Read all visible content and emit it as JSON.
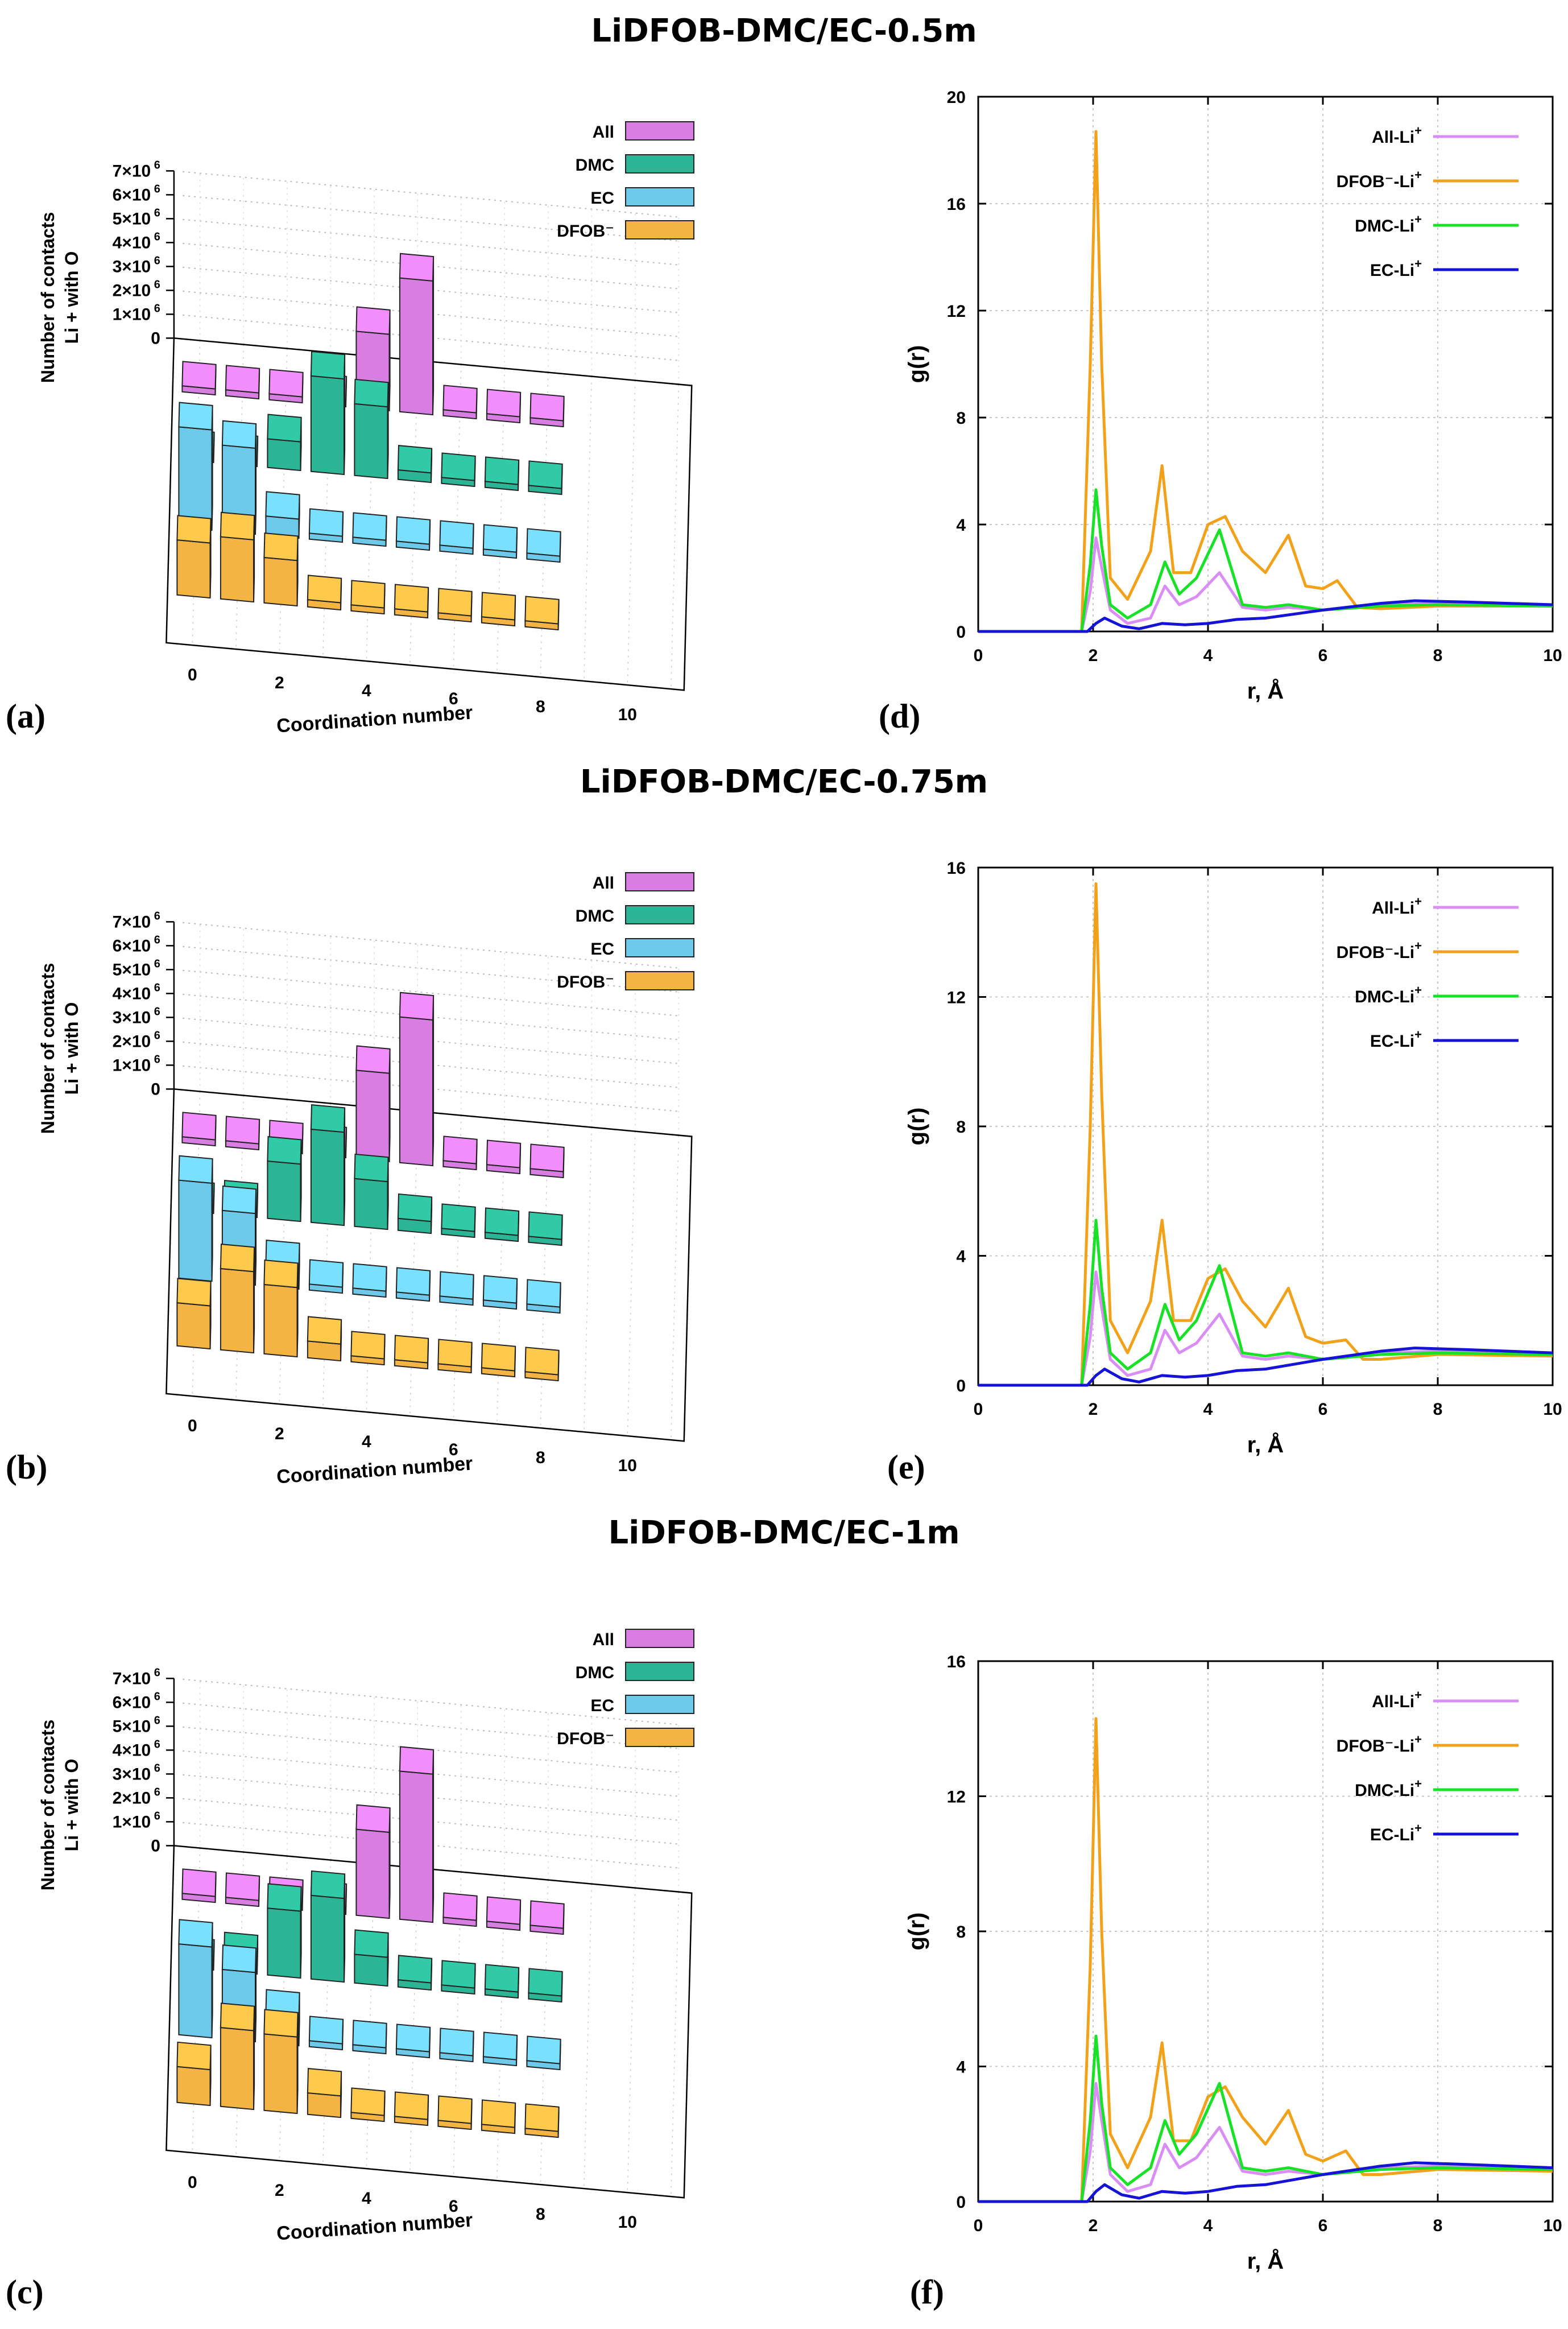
{
  "titles": [
    "LiDFOB-DMC/EC-0.5m",
    "LiDFOB-DMC/EC-0.75m",
    "LiDFOB-DMC/EC-1m"
  ],
  "labels": {
    "a": "(a)",
    "b": "(b)",
    "c": "(c)",
    "d": "(d)",
    "e": "(e)",
    "f": "(f)"
  },
  "chart_data": [
    {
      "id": "a",
      "type": "bar3d",
      "title": "LiDFOB-DMC/EC-0.5m",
      "xlabel": "Coordination number",
      "ylabel": [
        "Number of contacts",
        "Li + with O"
      ],
      "zticks": [
        "0",
        "1×10 6",
        "2×10 6",
        "3×10 6",
        "4×10 6",
        "5×10 6",
        "6×10 6",
        "7×10 6"
      ],
      "xticks": [
        "0",
        "2",
        "4",
        "6",
        "8",
        "10"
      ],
      "legend": [
        "All",
        "DMC",
        "EC",
        "DFOB⁻"
      ],
      "colors": [
        "#d87ee3",
        "#2bb594",
        "#6cc9ea",
        "#f4b443"
      ],
      "series": [
        {
          "name": "All",
          "values": [
            0,
            0,
            0,
            0,
            3.2,
            5.6,
            0,
            0,
            0
          ]
        },
        {
          "name": "DMC",
          "values": [
            0,
            0,
            1.2,
            4.0,
            3.0,
            0.4,
            0,
            0,
            0
          ]
        },
        {
          "name": "EC",
          "values": [
            4.2,
            3.6,
            0.8,
            0,
            0,
            0,
            0,
            0,
            0
          ]
        },
        {
          "name": "DFOB⁻",
          "values": [
            2.3,
            2.6,
            1.9,
            0.3,
            0,
            0,
            0,
            0,
            0
          ]
        }
      ]
    },
    {
      "id": "b",
      "type": "bar3d",
      "title": "LiDFOB-DMC/EC-0.75m",
      "xlabel": "Coordination number",
      "ylabel": [
        "Number of contacts",
        "Li + with O"
      ],
      "zticks": [
        "0",
        "1×10 6",
        "2×10 6",
        "3×10 6",
        "4×10 6",
        "5×10 6",
        "6×10 6",
        "7×10 6"
      ],
      "xticks": [
        "0",
        "2",
        "4",
        "6",
        "8",
        "10"
      ],
      "legend": [
        "All",
        "DMC",
        "EC",
        "DFOB⁻"
      ],
      "colors": [
        "#d87ee3",
        "#2bb594",
        "#6cc9ea",
        "#f4b443"
      ],
      "series": [
        {
          "name": "All",
          "values": [
            0,
            0,
            0,
            0,
            3.7,
            6.1,
            0,
            0,
            0
          ]
        },
        {
          "name": "DMC",
          "values": [
            0,
            0.4,
            2.4,
            3.9,
            2.0,
            0.5,
            0,
            0,
            0
          ]
        },
        {
          "name": "EC",
          "values": [
            4.1,
            3.0,
            0.9,
            0,
            0,
            0,
            0,
            0,
            0
          ]
        },
        {
          "name": "DFOB⁻",
          "values": [
            1.8,
            3.4,
            2.9,
            0.7,
            0,
            0,
            0,
            0,
            0
          ]
        }
      ]
    },
    {
      "id": "c",
      "type": "bar3d",
      "title": "LiDFOB-DMC/EC-1m",
      "xlabel": "Coordination number",
      "ylabel": [
        "Number of contacts",
        "Li + with O"
      ],
      "zticks": [
        "0",
        "1×10 6",
        "2×10 6",
        "3×10 6",
        "4×10 6",
        "5×10 6",
        "6×10 6",
        "7×10 6"
      ],
      "xticks": [
        "0",
        "2",
        "4",
        "6",
        "8",
        "10"
      ],
      "legend": [
        "All",
        "DMC",
        "EC",
        "DFOB⁻"
      ],
      "colors": [
        "#d87ee3",
        "#2bb594",
        "#6cc9ea",
        "#f4b443"
      ],
      "series": [
        {
          "name": "All",
          "values": [
            0,
            0,
            0,
            0,
            3.6,
            6.2,
            0,
            0,
            0
          ]
        },
        {
          "name": "DMC",
          "values": [
            0,
            0.6,
            2.8,
            3.5,
            1.2,
            0.3,
            0,
            0,
            0
          ]
        },
        {
          "name": "EC",
          "values": [
            3.8,
            2.9,
            1.2,
            0,
            0,
            0,
            0,
            0,
            0
          ]
        },
        {
          "name": "DFOB⁻",
          "values": [
            1.5,
            3.3,
            3.2,
            0.9,
            0,
            0,
            0,
            0,
            0
          ]
        }
      ]
    },
    {
      "id": "d",
      "type": "line",
      "xlabel": "r, Å",
      "ylabel": "g(r)",
      "xlim": [
        0,
        10
      ],
      "ylim": [
        0,
        20
      ],
      "xticks": [
        0,
        2,
        4,
        6,
        8,
        10
      ],
      "yticks": [
        0,
        4,
        8,
        12,
        16,
        20
      ],
      "series": [
        {
          "name": "All-Li",
          "sup": "+",
          "color": "#d98ef5",
          "x": [
            0,
            1.8,
            1.95,
            2.05,
            2.15,
            2.3,
            2.6,
            3.0,
            3.25,
            3.5,
            3.8,
            4.2,
            4.6,
            5.0,
            5.4,
            6.0,
            7.0,
            8.0,
            10.0
          ],
          "y": [
            0,
            0,
            1.5,
            3.5,
            2.4,
            0.8,
            0.3,
            0.5,
            1.7,
            1.0,
            1.3,
            2.2,
            0.9,
            0.8,
            0.9,
            0.8,
            1.0,
            1.05,
            1.0
          ]
        },
        {
          "name": "DFOB⁻-Li",
          "sup": "+",
          "color": "#f2a11b",
          "x": [
            0,
            1.8,
            1.95,
            2.05,
            2.15,
            2.3,
            2.6,
            3.0,
            3.2,
            3.4,
            3.7,
            4.0,
            4.3,
            4.6,
            5.0,
            5.4,
            5.7,
            6.0,
            6.25,
            6.6,
            7.0,
            8.0,
            10.0
          ],
          "y": [
            0,
            0,
            10,
            18.7,
            10,
            2,
            1.2,
            3.0,
            6.2,
            2.2,
            2.2,
            4.0,
            4.3,
            3.0,
            2.2,
            3.6,
            1.7,
            1.6,
            1.9,
            0.9,
            0.85,
            0.95,
            0.95
          ]
        },
        {
          "name": "DMC-Li",
          "sup": "+",
          "color": "#19e128",
          "x": [
            0,
            1.8,
            1.95,
            2.05,
            2.15,
            2.3,
            2.6,
            3.0,
            3.25,
            3.5,
            3.8,
            4.2,
            4.6,
            5.0,
            5.4,
            6.0,
            7.0,
            8.0,
            10.0
          ],
          "y": [
            0,
            0,
            2.5,
            5.3,
            3.2,
            1.0,
            0.5,
            1.0,
            2.6,
            1.4,
            2.0,
            3.8,
            1.0,
            0.9,
            1.0,
            0.8,
            0.95,
            1.0,
            0.95
          ]
        },
        {
          "name": "EC-Li",
          "sup": "+",
          "color": "#1413d6",
          "x": [
            0,
            1.9,
            2.05,
            2.2,
            2.5,
            2.8,
            3.2,
            3.6,
            4.0,
            4.5,
            5.0,
            6.0,
            7.0,
            7.6,
            8.5,
            10.0
          ],
          "y": [
            0,
            0,
            0.3,
            0.5,
            0.2,
            0.1,
            0.3,
            0.25,
            0.3,
            0.45,
            0.5,
            0.8,
            1.05,
            1.15,
            1.1,
            1.0
          ]
        }
      ]
    },
    {
      "id": "e",
      "type": "line",
      "xlabel": "r, Å",
      "ylabel": "g(r)",
      "xlim": [
        0,
        10
      ],
      "ylim": [
        0,
        16
      ],
      "xticks": [
        0,
        2,
        4,
        6,
        8,
        10
      ],
      "yticks": [
        0,
        4,
        8,
        12,
        16
      ],
      "series": [
        {
          "name": "All-Li",
          "sup": "+",
          "color": "#d98ef5",
          "x": [
            0,
            1.8,
            1.95,
            2.05,
            2.15,
            2.3,
            2.6,
            3.0,
            3.25,
            3.5,
            3.8,
            4.2,
            4.6,
            5.0,
            5.4,
            6.0,
            7.0,
            8.0,
            10.0
          ],
          "y": [
            0,
            0,
            1.5,
            3.5,
            2.4,
            0.8,
            0.3,
            0.5,
            1.7,
            1.0,
            1.3,
            2.2,
            0.9,
            0.8,
            0.9,
            0.8,
            1.0,
            1.05,
            1.0
          ]
        },
        {
          "name": "DFOB⁻-Li",
          "sup": "+",
          "color": "#f2a11b",
          "x": [
            0,
            1.8,
            1.95,
            2.05,
            2.15,
            2.3,
            2.6,
            3.0,
            3.2,
            3.4,
            3.7,
            4.0,
            4.3,
            4.6,
            5.0,
            5.4,
            5.7,
            6.0,
            6.4,
            6.7,
            7.0,
            8.0,
            10.0
          ],
          "y": [
            0,
            0,
            8,
            15.5,
            9,
            2,
            1.0,
            2.6,
            5.1,
            2.0,
            2.0,
            3.3,
            3.6,
            2.6,
            1.8,
            3.0,
            1.5,
            1.3,
            1.4,
            0.8,
            0.8,
            0.95,
            0.9
          ]
        },
        {
          "name": "DMC-Li",
          "sup": "+",
          "color": "#19e128",
          "x": [
            0,
            1.8,
            1.95,
            2.05,
            2.15,
            2.3,
            2.6,
            3.0,
            3.25,
            3.5,
            3.8,
            4.2,
            4.6,
            5.0,
            5.4,
            6.0,
            7.0,
            8.0,
            10.0
          ],
          "y": [
            0,
            0,
            2.5,
            5.1,
            3.0,
            1.0,
            0.5,
            1.0,
            2.5,
            1.4,
            2.0,
            3.7,
            1.0,
            0.9,
            1.0,
            0.8,
            0.95,
            1.0,
            0.95
          ]
        },
        {
          "name": "EC-Li",
          "sup": "+",
          "color": "#1413d6",
          "x": [
            0,
            1.9,
            2.05,
            2.2,
            2.5,
            2.8,
            3.2,
            3.6,
            4.0,
            4.5,
            5.0,
            6.0,
            7.0,
            7.6,
            8.5,
            10.0
          ],
          "y": [
            0,
            0,
            0.3,
            0.5,
            0.2,
            0.1,
            0.3,
            0.25,
            0.3,
            0.45,
            0.5,
            0.8,
            1.05,
            1.15,
            1.1,
            1.0
          ]
        }
      ]
    },
    {
      "id": "f",
      "type": "line",
      "xlabel": "r, Å",
      "ylabel": "g(r)",
      "xlim": [
        0,
        10
      ],
      "ylim": [
        0,
        16
      ],
      "xticks": [
        0,
        2,
        4,
        6,
        8,
        10
      ],
      "yticks": [
        0,
        4,
        8,
        12,
        16
      ],
      "series": [
        {
          "name": "All-Li",
          "sup": "+",
          "color": "#d98ef5",
          "x": [
            0,
            1.8,
            1.95,
            2.05,
            2.15,
            2.3,
            2.6,
            3.0,
            3.25,
            3.5,
            3.8,
            4.2,
            4.6,
            5.0,
            5.4,
            6.0,
            7.0,
            8.0,
            10.0
          ],
          "y": [
            0,
            0,
            1.5,
            3.5,
            2.4,
            0.8,
            0.3,
            0.5,
            1.7,
            1.0,
            1.3,
            2.2,
            0.9,
            0.8,
            0.9,
            0.8,
            1.0,
            1.05,
            1.0
          ]
        },
        {
          "name": "DFOB⁻-Li",
          "sup": "+",
          "color": "#f2a11b",
          "x": [
            0,
            1.8,
            1.95,
            2.05,
            2.15,
            2.3,
            2.6,
            3.0,
            3.2,
            3.4,
            3.7,
            4.0,
            4.3,
            4.6,
            5.0,
            5.4,
            5.7,
            6.0,
            6.4,
            6.7,
            7.0,
            8.0,
            10.0
          ],
          "y": [
            0,
            0,
            7,
            14.3,
            8,
            2,
            1.0,
            2.5,
            4.7,
            1.8,
            1.8,
            3.1,
            3.4,
            2.5,
            1.7,
            2.7,
            1.4,
            1.2,
            1.5,
            0.8,
            0.8,
            0.95,
            0.9
          ]
        },
        {
          "name": "DMC-Li",
          "sup": "+",
          "color": "#19e128",
          "x": [
            0,
            1.8,
            1.95,
            2.05,
            2.15,
            2.3,
            2.6,
            3.0,
            3.25,
            3.5,
            3.8,
            4.2,
            4.6,
            5.0,
            5.4,
            6.0,
            7.0,
            8.0,
            10.0
          ],
          "y": [
            0,
            0,
            2.4,
            4.9,
            2.9,
            1.0,
            0.5,
            1.0,
            2.4,
            1.4,
            2.0,
            3.5,
            1.0,
            0.9,
            1.0,
            0.8,
            0.95,
            1.0,
            0.95
          ]
        },
        {
          "name": "EC-Li",
          "sup": "+",
          "color": "#1413d6",
          "x": [
            0,
            1.9,
            2.05,
            2.2,
            2.5,
            2.8,
            3.2,
            3.6,
            4.0,
            4.5,
            5.0,
            6.0,
            7.0,
            7.6,
            8.5,
            10.0
          ],
          "y": [
            0,
            0,
            0.3,
            0.5,
            0.2,
            0.1,
            0.3,
            0.25,
            0.3,
            0.45,
            0.5,
            0.8,
            1.05,
            1.15,
            1.1,
            1.0
          ]
        }
      ]
    }
  ]
}
